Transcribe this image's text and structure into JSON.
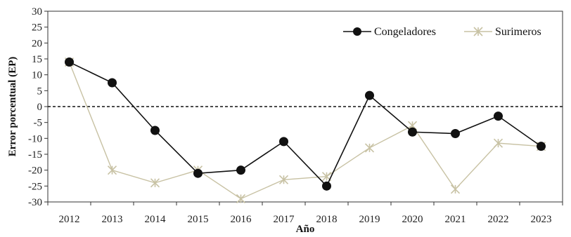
{
  "chart_data": {
    "type": "line",
    "xlabel": "Año",
    "ylabel": "Error porcentual (EP)",
    "categories": [
      "2012",
      "2013",
      "2014",
      "2015",
      "2016",
      "2017",
      "2018",
      "2019",
      "2020",
      "2021",
      "2022",
      "2023"
    ],
    "ylim": [
      -30,
      30
    ],
    "yticks": [
      30,
      25,
      20,
      15,
      10,
      5,
      0,
      -5,
      -10,
      -15,
      -20,
      -25,
      -30
    ],
    "reference_line": {
      "y": 0,
      "style": "dashed"
    },
    "legend_position": "top-right",
    "series": [
      {
        "name": "Congeladores",
        "values": [
          14,
          7.5,
          -7.5,
          -21,
          -20,
          -11,
          -25,
          3.5,
          -8,
          -8.5,
          -3,
          -12.5
        ],
        "color": "#111111",
        "marker": "circle"
      },
      {
        "name": "Surimeros",
        "values": [
          14,
          -20,
          -24,
          -20,
          -29,
          -23,
          -22,
          -13,
          -6,
          -26,
          -11.5,
          -12.5
        ],
        "color": "#c8c2a4",
        "marker": "star"
      }
    ]
  }
}
